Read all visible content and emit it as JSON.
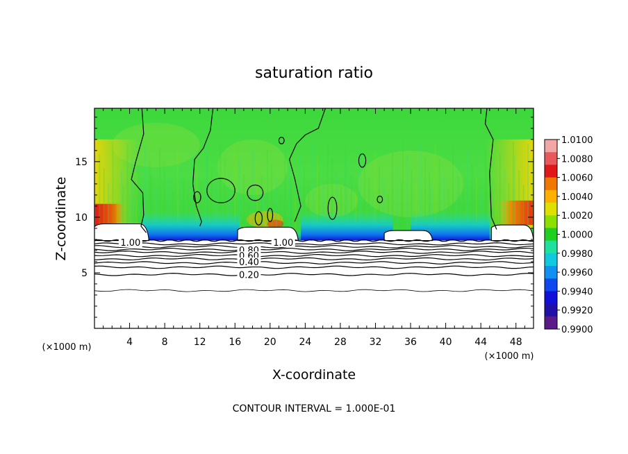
{
  "chart_data": {
    "type": "heatmap",
    "title": "saturation ratio",
    "xlabel": "X-coordinate",
    "ylabel": "Z-coordinate",
    "x_unit_label": "(×1000 m)",
    "y_unit_label": "(×1000 m)",
    "xlim": [
      0,
      50
    ],
    "ylim": [
      0,
      19.8
    ],
    "x_ticks": [
      4,
      8,
      12,
      16,
      20,
      24,
      28,
      32,
      36,
      40,
      44,
      48
    ],
    "y_ticks": [
      5,
      10,
      15
    ],
    "colorbar": {
      "levels": [
        "1.0100",
        "1.0080",
        "1.0060",
        "1.0040",
        "1.0020",
        "1.0000",
        "0.9980",
        "0.9960",
        "0.9940",
        "0.9920",
        "0.9900"
      ],
      "colors": [
        "#f2a6a6",
        "#e85a5a",
        "#e01818",
        "#f07800",
        "#ffb000",
        "#e0e000",
        "#8ce000",
        "#20d020",
        "#20e0a0",
        "#10c8e0",
        "#1090f0",
        "#1048f0",
        "#1010d8",
        "#2010a8",
        "#5a1a8a"
      ]
    },
    "contour_labels": [
      {
        "x": 4.1,
        "z": 7.75,
        "text": "1.00"
      },
      {
        "x": 17.6,
        "z": 7.05,
        "text": "0.80"
      },
      {
        "x": 17.6,
        "z": 6.55,
        "text": "0.60"
      },
      {
        "x": 17.6,
        "z": 6.0,
        "text": "0.40"
      },
      {
        "x": 17.6,
        "z": 4.85,
        "text": "0.20"
      },
      {
        "x": 21.5,
        "z": 7.75,
        "text": "1.00"
      }
    ],
    "contour_interval_note": "CONTOUR INTERVAL = 1.000E-01"
  }
}
